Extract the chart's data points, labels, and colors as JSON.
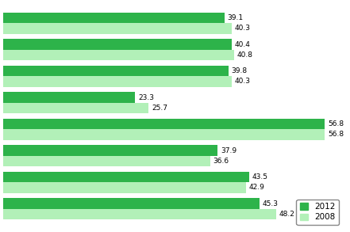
{
  "values_2012": [
    39.1,
    40.4,
    39.8,
    23.3,
    56.8,
    37.9,
    43.5,
    45.3
  ],
  "values_2008": [
    40.3,
    40.8,
    40.3,
    25.7,
    56.8,
    36.6,
    42.9,
    48.2
  ],
  "color_2012": "#2db34a",
  "color_2008": "#b2f0b8",
  "bar_height": 0.4,
  "xlim": [
    0,
    60
  ],
  "legend_2012": "2012",
  "legend_2008": "2008",
  "label_fontsize": 6.5,
  "legend_fontsize": 7.5,
  "tick_fontsize": 7,
  "background_color": "#ffffff",
  "grid_color": "#cccccc"
}
